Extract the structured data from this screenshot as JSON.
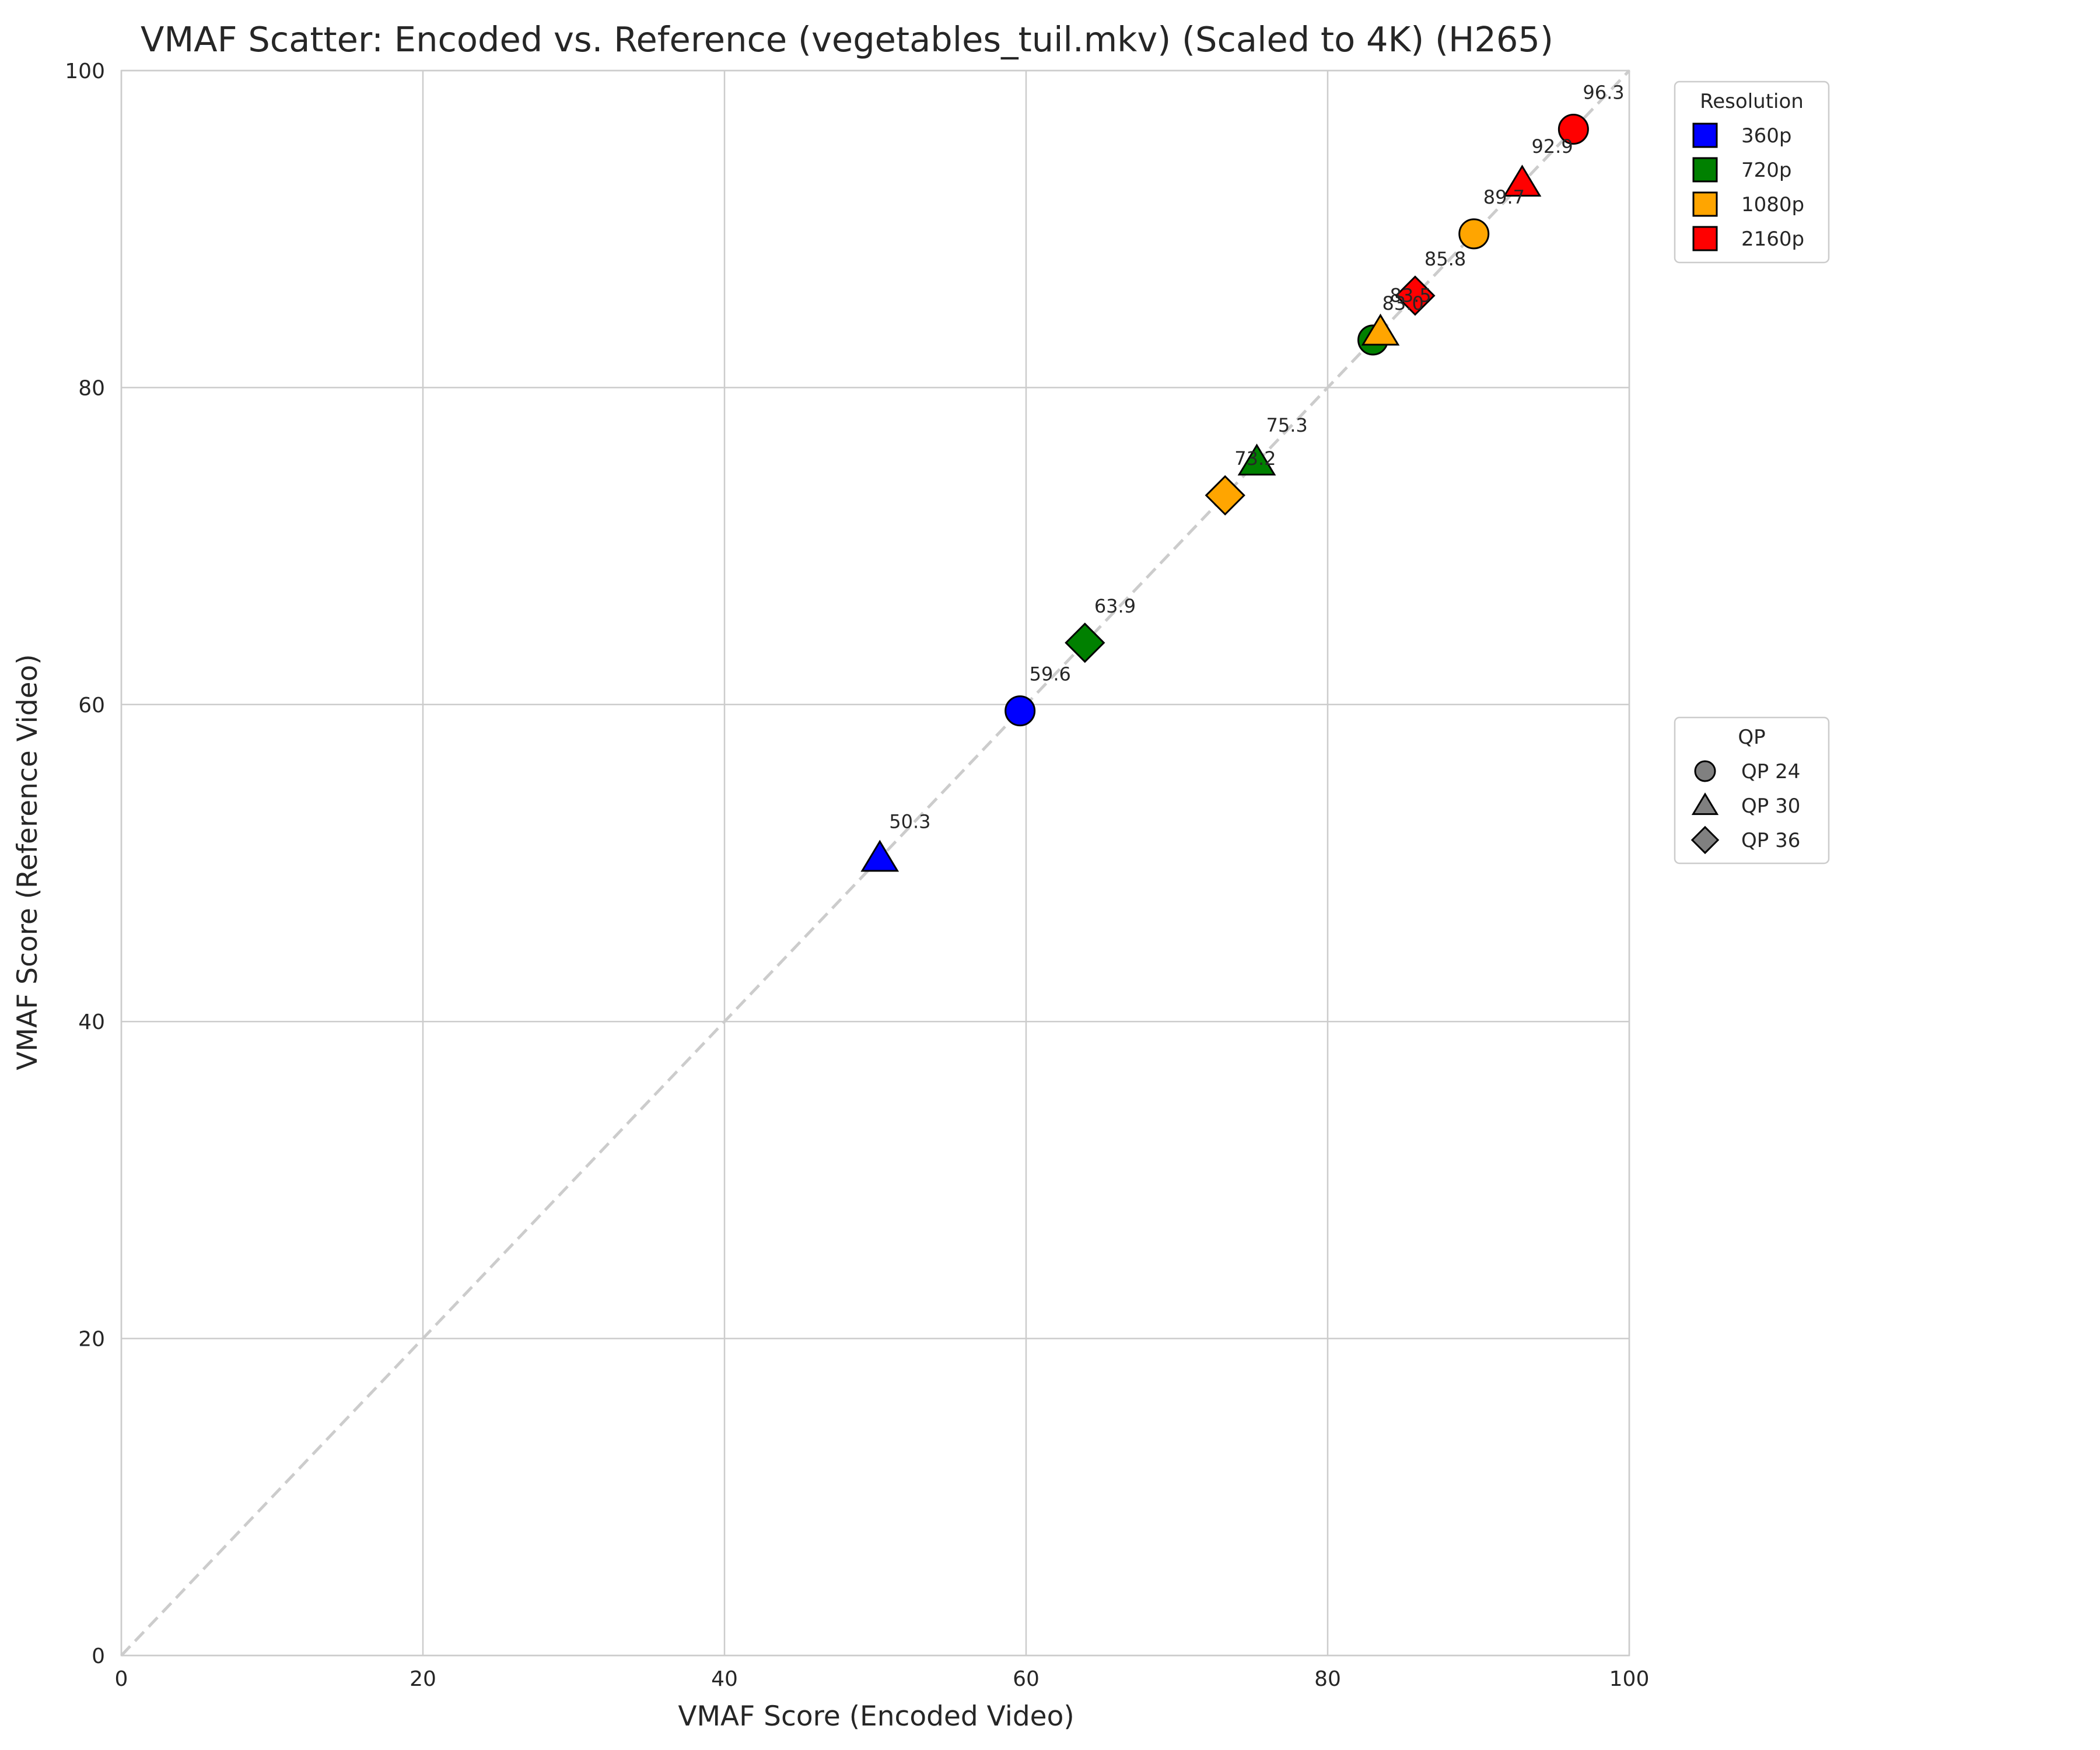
{
  "chart_data": {
    "type": "scatter",
    "title": "VMAF Scatter: Encoded vs. Reference (vegetables_tuil.mkv) (Scaled to 4K) (H265)",
    "xlabel": "VMAF Score (Encoded Video)",
    "ylabel": "VMAF Score (Reference Video)",
    "xlim": [
      0,
      100
    ],
    "ylim": [
      0,
      100
    ],
    "xticks": [
      "0",
      "20",
      "40",
      "60",
      "80",
      "100"
    ],
    "yticks": [
      "0",
      "20",
      "40",
      "60",
      "80",
      "100"
    ],
    "grid": true,
    "reference_line": "y = x (dashed)",
    "legend_resolution": {
      "title": "Resolution",
      "placement": "upper right, outside",
      "items": [
        {
          "label": "360p",
          "color": "#0000ff"
        },
        {
          "label": "720p",
          "color": "#008000"
        },
        {
          "label": "1080p",
          "color": "#ffa500"
        },
        {
          "label": "2160p",
          "color": "#ff0000"
        }
      ]
    },
    "legend_qp": {
      "title": "QP",
      "placement": "center right, outside",
      "items": [
        {
          "label": "QP 24",
          "marker": "circle"
        },
        {
          "label": "QP 30",
          "marker": "triangle"
        },
        {
          "label": "QP 36",
          "marker": "diamond"
        }
      ]
    },
    "points": [
      {
        "resolution": "360p",
        "qp": 24,
        "x": 59.6,
        "y": 59.6,
        "label": "59.6"
      },
      {
        "resolution": "360p",
        "qp": 30,
        "x": 50.3,
        "y": 50.3,
        "label": "50.3"
      },
      {
        "resolution": "720p",
        "qp": 24,
        "x": 83.0,
        "y": 83.0,
        "label": "83.0"
      },
      {
        "resolution": "720p",
        "qp": 30,
        "x": 75.3,
        "y": 75.3,
        "label": "75.3"
      },
      {
        "resolution": "720p",
        "qp": 36,
        "x": 63.9,
        "y": 63.9,
        "label": "63.9"
      },
      {
        "resolution": "1080p",
        "qp": 24,
        "x": 89.7,
        "y": 89.7,
        "label": "89.7"
      },
      {
        "resolution": "1080p",
        "qp": 30,
        "x": 83.5,
        "y": 83.5,
        "label": "83.5"
      },
      {
        "resolution": "1080p",
        "qp": 36,
        "x": 73.2,
        "y": 73.2,
        "label": "73.2"
      },
      {
        "resolution": "2160p",
        "qp": 24,
        "x": 96.3,
        "y": 96.3,
        "label": "96.3"
      },
      {
        "resolution": "2160p",
        "qp": 30,
        "x": 92.9,
        "y": 92.9,
        "label": "92.9"
      },
      {
        "resolution": "2160p",
        "qp": 36,
        "x": 85.8,
        "y": 85.8,
        "label": "85.8"
      }
    ]
  }
}
